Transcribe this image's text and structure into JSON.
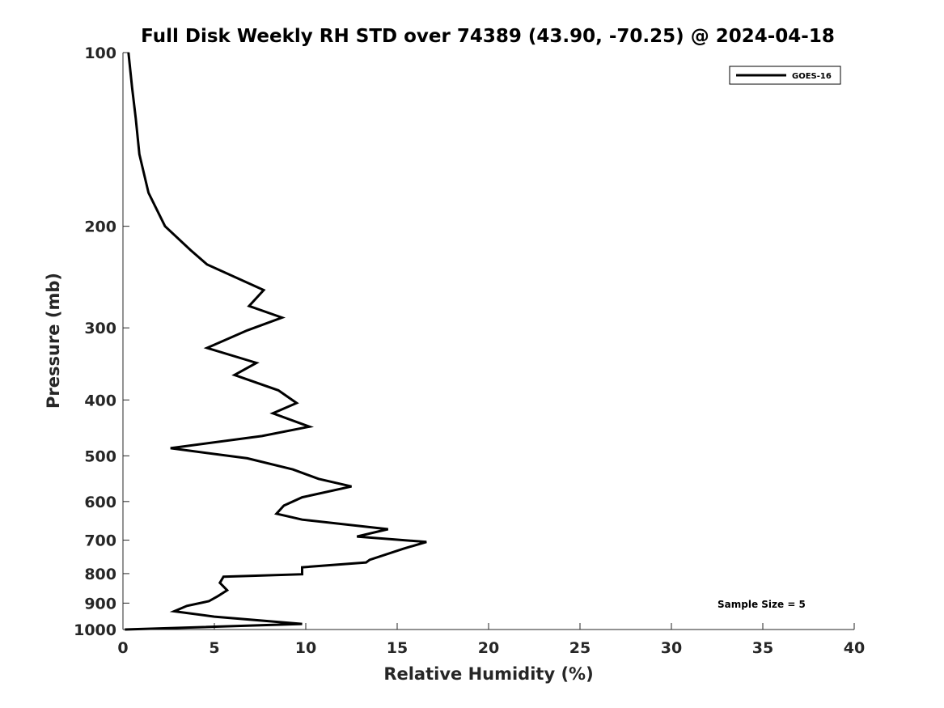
{
  "chart_data": {
    "type": "line",
    "title": "Full Disk Weekly RH STD over 74389 (43.90, -70.25) @ 2024-04-18",
    "xlabel": "Relative Humidity (%)",
    "ylabel": "Pressure (mb)",
    "xlim": [
      0,
      40
    ],
    "ylim": [
      1000,
      100
    ],
    "yscale": "log",
    "xticks": [
      0,
      5,
      10,
      15,
      20,
      25,
      30,
      35,
      40
    ],
    "yticks": [
      100,
      200,
      300,
      400,
      500,
      600,
      700,
      800,
      900,
      1000
    ],
    "legend": {
      "position": "top-right",
      "entries": [
        "GOES-16"
      ]
    },
    "annotation": "Sample Size = 5",
    "series": [
      {
        "name": "GOES-16",
        "color": "#000000",
        "points": [
          [
            0.3,
            100
          ],
          [
            0.5,
            115
          ],
          [
            0.7,
            130
          ],
          [
            0.9,
            150
          ],
          [
            1.4,
            175
          ],
          [
            2.3,
            200
          ],
          [
            3.7,
            220
          ],
          [
            4.6,
            233
          ],
          [
            7.7,
            258
          ],
          [
            6.9,
            275
          ],
          [
            8.7,
            288
          ],
          [
            6.8,
            303
          ],
          [
            4.6,
            325
          ],
          [
            7.3,
            345
          ],
          [
            6.1,
            362
          ],
          [
            8.5,
            385
          ],
          [
            9.5,
            405
          ],
          [
            8.2,
            422
          ],
          [
            10.2,
            445
          ],
          [
            7.6,
            462
          ],
          [
            2.6,
            485
          ],
          [
            6.8,
            505
          ],
          [
            9.3,
            528
          ],
          [
            10.7,
            548
          ],
          [
            12.5,
            565
          ],
          [
            9.8,
            590
          ],
          [
            8.8,
            610
          ],
          [
            8.4,
            630
          ],
          [
            9.8,
            645
          ],
          [
            14.5,
            670
          ],
          [
            12.8,
            690
          ],
          [
            16.6,
            705
          ],
          [
            15.3,
            725
          ],
          [
            13.5,
            757
          ],
          [
            13.3,
            765
          ],
          [
            9.8,
            780
          ],
          [
            9.8,
            802
          ],
          [
            5.5,
            810
          ],
          [
            5.3,
            830
          ],
          [
            5.7,
            855
          ],
          [
            5.2,
            875
          ],
          [
            4.7,
            893
          ],
          [
            3.5,
            910
          ],
          [
            2.8,
            930
          ],
          [
            5.0,
            950
          ],
          [
            9.8,
            978
          ],
          [
            0.1,
            1000
          ]
        ]
      }
    ]
  }
}
